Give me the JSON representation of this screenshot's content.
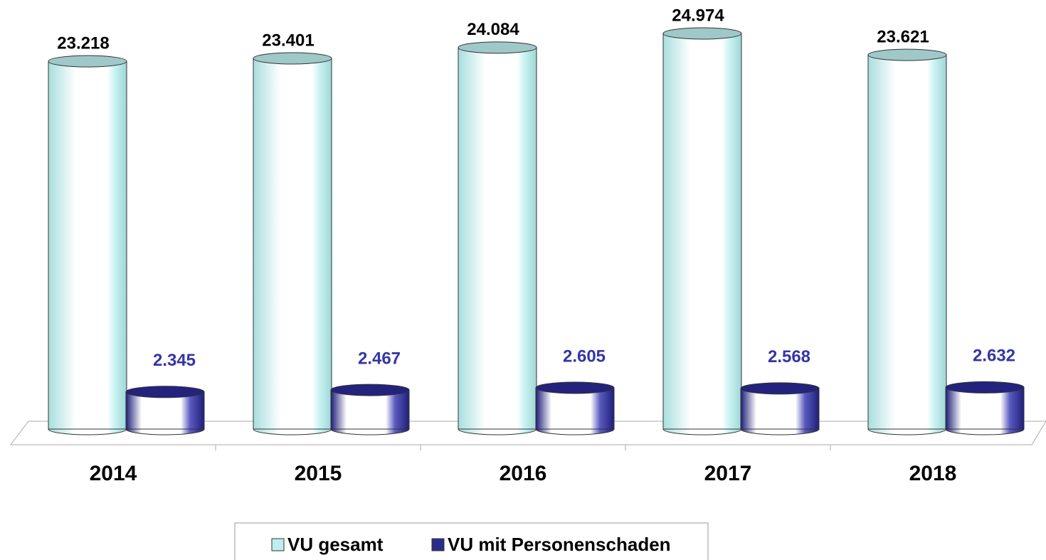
{
  "chart_data": {
    "type": "bar3d",
    "categories": [
      "2014",
      "2015",
      "2016",
      "2017",
      "2018"
    ],
    "series": [
      {
        "name": "VU gesamt",
        "color": "#bfeeee",
        "values": [
          23218,
          23401,
          24084,
          24974,
          23621
        ],
        "value_labels": [
          "23.218",
          "23.401",
          "24.084",
          "24.974",
          "23.621"
        ]
      },
      {
        "name": "VU mit Personenschaden",
        "color": "#2b2b8c",
        "values": [
          2345,
          2467,
          2605,
          2568,
          2632
        ],
        "value_labels": [
          "2.345",
          "2.467",
          "2.605",
          "2.568",
          "2.632"
        ]
      }
    ],
    "legend": "bottom"
  }
}
